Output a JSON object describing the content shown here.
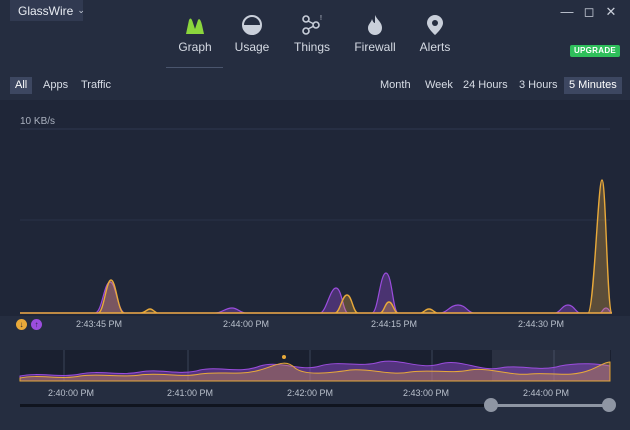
{
  "app": {
    "title": "GlassWire"
  },
  "nav": [
    {
      "label": "Graph",
      "icon": "graph-icon",
      "active": true
    },
    {
      "label": "Usage",
      "icon": "usage-icon"
    },
    {
      "label": "Things",
      "icon": "things-icon",
      "badge": "!"
    },
    {
      "label": "Firewall",
      "icon": "firewall-icon"
    },
    {
      "label": "Alerts",
      "icon": "alerts-icon"
    }
  ],
  "upgrade_label": "UPGRADE",
  "filters_left": [
    "All",
    "Apps",
    "Traffic"
  ],
  "filters_right": [
    "Month",
    "Week",
    "24 Hours",
    "3 Hours",
    "5 Minutes"
  ],
  "active_left": "All",
  "active_right": "5 Minutes",
  "colors": {
    "incoming": "#e8a93a",
    "outgoing": "#9b4dde",
    "upgrade": "#2fbf5b"
  },
  "chart_data": {
    "type": "area",
    "y_label": "10 KB/s",
    "x_ticks": [
      "2:43:45 PM",
      "2:44:00 PM",
      "2:44:15 PM",
      "2:44:30 PM"
    ],
    "overview_ticks": [
      "2:40:00 PM",
      "2:41:00 PM",
      "2:42:00 PM",
      "2:43:00 PM",
      "2:44:00 PM"
    ]
  },
  "legend_icons": [
    {
      "name": "incoming-icon",
      "glyph": "↓",
      "color": "#e8a93a"
    },
    {
      "name": "outgoing-icon",
      "glyph": "↑",
      "color": "#9b4dde"
    }
  ]
}
